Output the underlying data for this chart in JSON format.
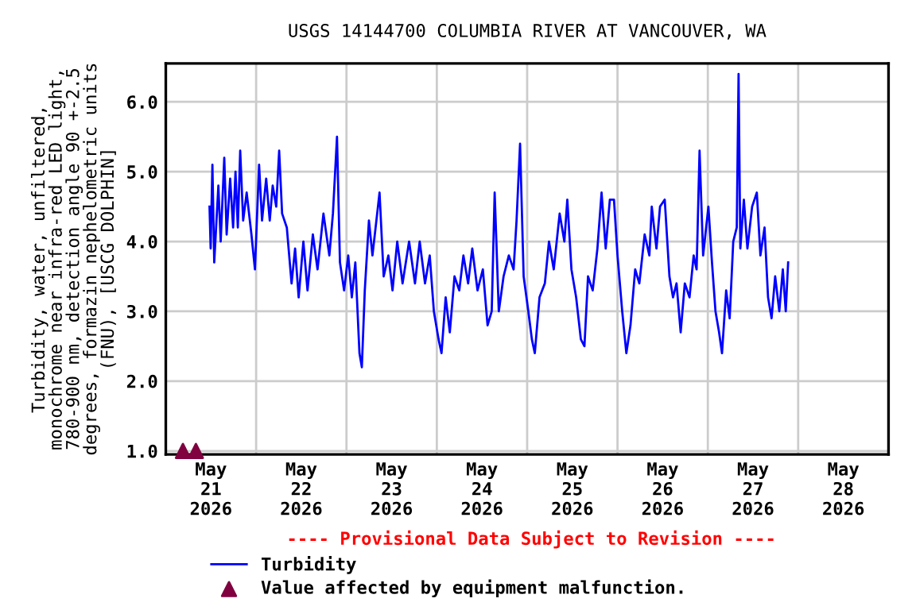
{
  "chart_data": {
    "type": "line",
    "title": "USGS 14144700 COLUMBIA RIVER AT VANCOUVER, WA",
    "ylabel": "Turbidity, water, unfiltered,\nmonochrome near infra-red LED light,\n780-900 nm, detection angle 90 +-2.5\ndegrees, formazin nephelometric units\n(FNU), [USCG DOLPHIN]",
    "annotations": [
      "---- Provisional Data Subject to Revision ----"
    ],
    "series": [
      {
        "name": "Turbidity",
        "color": "#0000ff",
        "marker": "none",
        "line_style": "solid",
        "x": [
          "2026-05-21T11:37",
          "2026-05-21T11:55",
          "2026-05-21T12:23",
          "2026-05-21T12:52",
          "2026-05-21T13:58",
          "2026-05-21T14:35",
          "2026-05-21T15:32",
          "2026-05-21T16:10",
          "2026-05-21T17:06",
          "2026-05-21T17:53",
          "2026-05-21T18:31",
          "2026-05-21T19:08",
          "2026-05-21T19:46",
          "2026-05-21T20:33",
          "2026-05-21T21:29",
          "2026-05-21T22:45",
          "2026-05-21T23:41",
          "2026-05-22T00:47",
          "2026-05-22T01:34",
          "2026-05-22T02:40",
          "2026-05-22T03:37",
          "2026-05-22T04:24",
          "2026-05-22T05:20",
          "2026-05-22T06:07",
          "2026-05-22T06:54",
          "2026-05-22T08:09",
          "2026-05-22T09:25",
          "2026-05-22T10:21",
          "2026-05-22T11:18",
          "2026-05-22T12:33",
          "2026-05-22T13:39",
          "2026-05-22T15:04",
          "2026-05-22T16:19",
          "2026-05-22T17:53",
          "2026-05-22T19:27",
          "2026-05-22T20:24",
          "2026-05-22T21:29",
          "2026-05-22T22:16",
          "2026-05-22T23:22",
          "2026-05-23T00:28",
          "2026-05-23T01:25",
          "2026-05-23T02:21",
          "2026-05-23T03:27",
          "2026-05-23T04:05",
          "2026-05-23T04:52",
          "2026-05-23T05:58",
          "2026-05-23T06:54",
          "2026-05-23T08:47",
          "2026-05-23T09:53",
          "2026-05-23T11:08",
          "2026-05-23T12:14",
          "2026-05-23T13:29",
          "2026-05-23T14:54",
          "2026-05-23T16:38",
          "2026-05-23T18:12",
          "2026-05-23T19:27",
          "2026-05-23T20:52",
          "2026-05-23T22:07",
          "2026-05-23T23:13",
          "2026-05-24T00:28",
          "2026-05-24T01:15",
          "2026-05-24T02:21",
          "2026-05-24T03:27",
          "2026-05-24T04:42",
          "2026-05-24T05:58",
          "2026-05-24T07:04",
          "2026-05-24T08:19",
          "2026-05-24T09:25",
          "2026-05-24T10:49",
          "2026-05-24T12:14",
          "2026-05-24T13:29",
          "2026-05-24T14:35",
          "2026-05-24T15:22",
          "2026-05-24T16:28",
          "2026-05-24T17:44",
          "2026-05-24T19:08",
          "2026-05-24T20:24",
          "2026-05-24T21:11",
          "2026-05-24T22:07",
          "2026-05-24T23:04",
          "2026-05-25T00:19",
          "2026-05-25T01:15",
          "2026-05-25T02:02",
          "2026-05-25T03:17",
          "2026-05-25T04:42",
          "2026-05-25T05:48",
          "2026-05-25T07:04",
          "2026-05-25T08:38",
          "2026-05-25T09:53",
          "2026-05-25T10:40",
          "2026-05-25T11:46",
          "2026-05-25T13:01",
          "2026-05-25T14:16",
          "2026-05-25T15:13",
          "2026-05-25T16:10",
          "2026-05-25T17:25",
          "2026-05-25T18:40",
          "2026-05-25T19:46",
          "2026-05-25T20:52",
          "2026-05-25T21:58",
          "2026-05-25T23:04",
          "2026-05-26T00:00",
          "2026-05-26T01:15",
          "2026-05-26T02:21",
          "2026-05-26T03:27",
          "2026-05-26T04:42",
          "2026-05-26T05:48",
          "2026-05-26T07:13",
          "2026-05-26T08:28",
          "2026-05-26T09:06",
          "2026-05-26T10:21",
          "2026-05-26T11:18",
          "2026-05-26T12:33",
          "2026-05-26T13:48",
          "2026-05-26T14:45",
          "2026-05-26T15:41",
          "2026-05-26T16:47",
          "2026-05-26T17:53",
          "2026-05-26T19:08",
          "2026-05-26T20:14",
          "2026-05-26T21:01",
          "2026-05-26T21:48",
          "2026-05-26T22:45",
          "2026-05-27T00:09",
          "2026-05-27T01:06",
          "2026-05-27T02:02",
          "2026-05-27T02:59",
          "2026-05-27T03:46",
          "2026-05-27T04:52",
          "2026-05-27T05:48",
          "2026-05-27T06:45",
          "2026-05-27T07:41",
          "2026-05-27T08:10",
          "2026-05-27T08:38",
          "2026-05-27T09:34",
          "2026-05-27T10:31",
          "2026-05-27T11:46",
          "2026-05-27T13:01",
          "2026-05-27T13:58",
          "2026-05-27T15:04",
          "2026-05-27T16:00",
          "2026-05-27T16:56",
          "2026-05-27T17:53",
          "2026-05-27T18:59",
          "2026-05-27T19:55",
          "2026-05-27T20:42",
          "2026-05-27T21:20"
        ],
        "values": [
          4.5,
          3.9,
          5.1,
          3.7,
          4.8,
          4.0,
          5.2,
          4.1,
          4.9,
          4.2,
          5.0,
          4.2,
          5.3,
          4.3,
          4.7,
          4.1,
          3.6,
          5.1,
          4.3,
          4.9,
          4.3,
          4.8,
          4.5,
          5.3,
          4.4,
          4.2,
          3.4,
          3.9,
          3.2,
          4.0,
          3.3,
          4.1,
          3.6,
          4.4,
          3.8,
          4.4,
          5.5,
          3.7,
          3.3,
          3.8,
          3.2,
          3.7,
          2.4,
          2.2,
          3.3,
          4.3,
          3.8,
          4.7,
          3.5,
          3.8,
          3.3,
          4.0,
          3.4,
          4.0,
          3.4,
          4.0,
          3.4,
          3.8,
          3.0,
          2.6,
          2.4,
          3.2,
          2.7,
          3.5,
          3.3,
          3.8,
          3.4,
          3.9,
          3.3,
          3.6,
          2.8,
          3.0,
          4.7,
          3.0,
          3.5,
          3.8,
          3.6,
          4.3,
          5.4,
          3.5,
          3.0,
          2.6,
          2.4,
          3.2,
          3.4,
          4.0,
          3.6,
          4.4,
          4.0,
          4.6,
          3.6,
          3.2,
          2.6,
          2.5,
          3.5,
          3.3,
          3.9,
          4.7,
          3.9,
          4.6,
          4.6,
          3.8,
          3.0,
          2.4,
          2.8,
          3.6,
          3.4,
          4.1,
          3.8,
          4.5,
          3.9,
          4.5,
          4.6,
          3.5,
          3.2,
          3.4,
          2.7,
          3.4,
          3.2,
          3.8,
          3.6,
          5.3,
          3.8,
          4.5,
          3.7,
          3.0,
          2.7,
          2.4,
          3.3,
          2.9,
          4.0,
          4.2,
          6.4,
          3.9,
          4.6,
          3.9,
          4.5,
          4.7,
          3.8,
          4.2,
          3.2,
          2.9,
          3.5,
          3.0,
          3.6,
          3.0,
          3.7
        ]
      },
      {
        "name": "Value affected by equipment malfunction.",
        "type": "scatter",
        "color": "#800040",
        "marker": "triangle",
        "x": [
          "2026-05-21T04:33",
          "2026-05-21T08:00"
        ],
        "values": [
          1.0,
          1.0
        ]
      }
    ],
    "xlim": [
      "2026-05-21T00:00",
      "2026-05-29T00:00"
    ],
    "xticks": [
      {
        "value": "2026-05-22T00:00",
        "label": null
      },
      {
        "value": "2026-05-23T00:00",
        "label": null
      },
      {
        "value": "2026-05-24T00:00",
        "label": null
      },
      {
        "value": "2026-05-25T00:00",
        "label": null
      },
      {
        "value": "2026-05-26T00:00",
        "label": null
      },
      {
        "value": "2026-05-27T00:00",
        "label": null
      },
      {
        "value": "2026-05-28T00:00",
        "label": null
      },
      {
        "value": "2026-05-21T12:00",
        "label": "May\n21\n2026"
      },
      {
        "value": "2026-05-22T12:00",
        "label": "May\n22\n2026"
      },
      {
        "value": "2026-05-23T12:00",
        "label": "May\n23\n2026"
      },
      {
        "value": "2026-05-24T12:00",
        "label": "May\n24\n2026"
      },
      {
        "value": "2026-05-25T12:00",
        "label": "May\n25\n2026"
      },
      {
        "value": "2026-05-26T12:00",
        "label": "May\n26\n2026"
      },
      {
        "value": "2026-05-27T12:00",
        "label": "May\n27\n2026"
      },
      {
        "value": "2026-05-28T12:00",
        "label": "May\n28\n2026"
      }
    ],
    "ylim": [
      0.95,
      6.55
    ],
    "yticks": [
      {
        "value": 1,
        "label": "1.0"
      },
      {
        "value": 2,
        "label": "2.0"
      },
      {
        "value": 3,
        "label": "3.0"
      },
      {
        "value": 4,
        "label": "4.0"
      },
      {
        "value": 5,
        "label": "5.0"
      },
      {
        "value": 6,
        "label": "6.0"
      }
    ],
    "grid": true,
    "legend": "bottom"
  }
}
